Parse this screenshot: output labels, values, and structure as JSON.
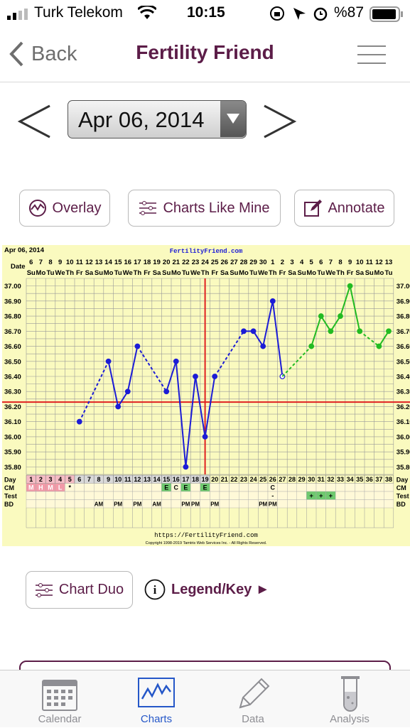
{
  "status": {
    "carrier": "Turk Telekom",
    "time": "10:15",
    "battery": "%87"
  },
  "nav": {
    "back": "Back",
    "title": "Fertility Friend"
  },
  "date": {
    "value": "Apr 06, 2014"
  },
  "actions": {
    "overlay": "Overlay",
    "charts_like_mine": "Charts Like Mine",
    "annotate": "Annotate"
  },
  "bottom_actions": {
    "chart_duo": "Chart Duo",
    "legend": "Legend/Key ►"
  },
  "tabs": [
    {
      "label": "Calendar"
    },
    {
      "label": "Charts"
    },
    {
      "label": "Data"
    },
    {
      "label": "Analysis"
    }
  ],
  "colors": {
    "brand": "#5c1d48",
    "chart_bg": "#fafabf",
    "cycle_line": "#1c1cd6",
    "next_cycle_line": "#22bb22",
    "coverline": "#e02020",
    "grid": "#999999"
  },
  "chart_data": {
    "type": "line",
    "header_date": "Apr 06, 2014",
    "site": "FertilityFriend.com",
    "footer_url": "https://FertilityFriend.com",
    "copyright": "Copyright 1998-2019 Tamtris Web Services Inc. - All Rights Reserved.",
    "row_labels": {
      "date": "Date",
      "day": "Day",
      "cm": "CM",
      "test": "Test",
      "bd": "BD"
    },
    "dates": [
      "6",
      "7",
      "8",
      "9",
      "10",
      "11",
      "12",
      "13",
      "14",
      "15",
      "16",
      "17",
      "18",
      "19",
      "20",
      "21",
      "22",
      "23",
      "24",
      "25",
      "26",
      "27",
      "28",
      "29",
      "30",
      "1",
      "2",
      "3",
      "4",
      "5",
      "6",
      "7",
      "8",
      "9",
      "10",
      "11",
      "12",
      "13"
    ],
    "weekdays": [
      "Su",
      "Mo",
      "Tu",
      "We",
      "Th",
      "Fr",
      "Sa",
      "Su",
      "Mo",
      "Tu",
      "We",
      "Th",
      "Fr",
      "Sa",
      "Su",
      "Mo",
      "Tu",
      "We",
      "Th",
      "Fr",
      "Sa",
      "Su",
      "Mo",
      "Tu",
      "We",
      "Th",
      "Fr",
      "Sa",
      "Su",
      "Mo",
      "Tu",
      "We",
      "Th",
      "Fr",
      "Sa",
      "Su",
      "Mo",
      "Tu"
    ],
    "days": [
      "1",
      "2",
      "3",
      "4",
      "5",
      "6",
      "7",
      "8",
      "9",
      "10",
      "11",
      "12",
      "13",
      "14",
      "15",
      "16",
      "17",
      "18",
      "19",
      "20",
      "21",
      "22",
      "23",
      "24",
      "25",
      "26",
      "27",
      "28",
      "29",
      "30",
      "31",
      "32",
      "33",
      "34",
      "35",
      "36",
      "37",
      "38"
    ],
    "y_ticks": [
      "37.00",
      "36.90",
      "36.80",
      "36.70",
      "36.60",
      "36.50",
      "36.40",
      "36.30",
      "36.20",
      "36.10",
      "36.00",
      "35.90",
      "35.80"
    ],
    "ylim": [
      35.75,
      37.05
    ],
    "coverline": 36.23,
    "ovulation_day": 19,
    "series": [
      {
        "points": [
          [
            6,
            36.1
          ],
          [
            9,
            36.5
          ],
          [
            10,
            36.2
          ],
          [
            11,
            36.3
          ],
          [
            12,
            36.6
          ],
          [
            15,
            36.3
          ],
          [
            16,
            36.5
          ],
          [
            17,
            35.8
          ],
          [
            18,
            36.4
          ],
          [
            19,
            36.0
          ],
          [
            20,
            36.4
          ],
          [
            23,
            36.7
          ],
          [
            24,
            36.7
          ],
          [
            25,
            36.6
          ],
          [
            26,
            36.9
          ],
          [
            27,
            36.4
          ]
        ],
        "dashed_segments": [
          [
            6,
            9
          ],
          [
            12,
            15
          ],
          [
            20,
            23
          ]
        ],
        "open_points": [
          27
        ]
      },
      {
        "points": [
          [
            30,
            36.6
          ],
          [
            31,
            36.8
          ],
          [
            32,
            36.7
          ],
          [
            33,
            36.8
          ],
          [
            34,
            37.0
          ],
          [
            35,
            36.7
          ],
          [
            37,
            36.6
          ],
          [
            38,
            36.7
          ]
        ],
        "dashed_segments": [
          [
            27,
            30
          ],
          [
            35,
            37
          ]
        ],
        "connect_from": [
          27,
          36.4
        ]
      }
    ],
    "cm": {
      "1": "M",
      "2": "H",
      "3": "M",
      "4": "L",
      "5": "*",
      "15": "E",
      "16": "C",
      "17": "E",
      "19": "E",
      "26": "C"
    },
    "test": {
      "26": "-",
      "30": "+",
      "31": "+",
      "32": "+"
    },
    "bd": {
      "8": "AM",
      "10": "PM",
      "12": "PM",
      "14": "AM",
      "17": "PM",
      "18": "PM",
      "20": "PM",
      "25": "PM",
      "26": "PM"
    }
  }
}
